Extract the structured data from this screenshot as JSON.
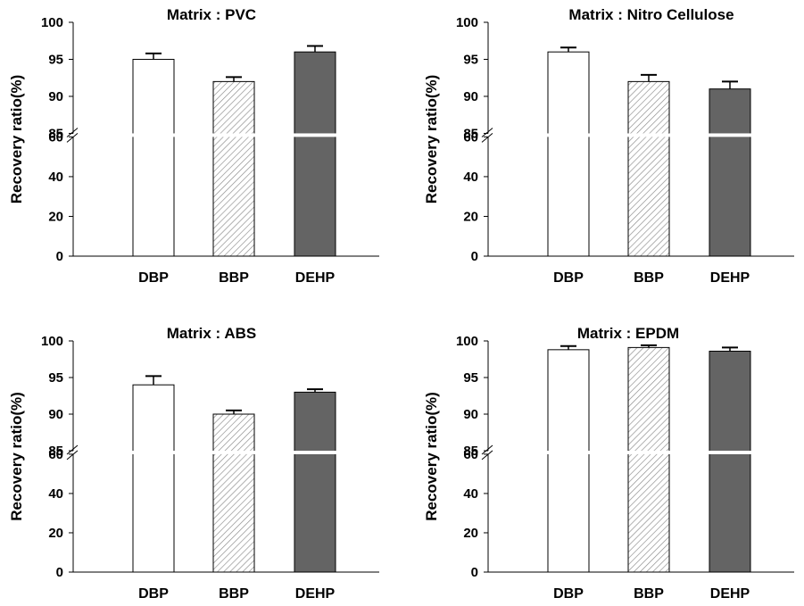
{
  "chart_data": [
    {
      "type": "bar",
      "title": "Matrix : PVC",
      "ylabel": "Recovery ratio(%)",
      "xlabel": "",
      "categories": [
        "DBP",
        "BBP",
        "DEHP"
      ],
      "values": [
        95.0,
        92.0,
        96.0
      ],
      "errors": [
        0.8,
        0.6,
        0.8
      ],
      "ylim": [
        0,
        100
      ],
      "axis_break": [
        60,
        85
      ],
      "yticks_lower": [
        "0",
        "20",
        "40",
        "60"
      ],
      "yticks_upper": [
        "85",
        "90",
        "95",
        "100"
      ],
      "bar_styles": [
        "white",
        "hatched",
        "dark"
      ],
      "grid": false
    },
    {
      "type": "bar",
      "title": "Matrix : Nitro Cellulose",
      "ylabel": "Recovery ratio(%)",
      "xlabel": "",
      "categories": [
        "DBP",
        "BBP",
        "DEHP"
      ],
      "values": [
        96.0,
        92.0,
        91.0
      ],
      "errors": [
        0.6,
        0.9,
        1.0
      ],
      "ylim": [
        0,
        100
      ],
      "axis_break": [
        60,
        85
      ],
      "yticks_lower": [
        "0",
        "20",
        "40",
        "60"
      ],
      "yticks_upper": [
        "85",
        "90",
        "95",
        "100"
      ],
      "bar_styles": [
        "white",
        "hatched",
        "dark"
      ],
      "grid": false
    },
    {
      "type": "bar",
      "title": "Matrix : ABS",
      "ylabel": "Recovery ratio(%)",
      "xlabel": "",
      "categories": [
        "DBP",
        "BBP",
        "DEHP"
      ],
      "values": [
        94.0,
        90.0,
        93.0
      ],
      "errors": [
        1.2,
        0.5,
        0.4
      ],
      "ylim": [
        0,
        100
      ],
      "axis_break": [
        60,
        85
      ],
      "yticks_lower": [
        "0",
        "20",
        "40",
        "60"
      ],
      "yticks_upper": [
        "85",
        "90",
        "95",
        "100"
      ],
      "bar_styles": [
        "white",
        "hatched",
        "dark"
      ],
      "grid": false
    },
    {
      "type": "bar",
      "title": "Matrix : EPDM",
      "ylabel": "Recovery ratio(%)",
      "xlabel": "",
      "categories": [
        "DBP",
        "BBP",
        "DEHP"
      ],
      "values": [
        98.8,
        99.1,
        98.6
      ],
      "errors": [
        0.5,
        0.3,
        0.5
      ],
      "ylim": [
        0,
        100
      ],
      "axis_break": [
        60,
        85
      ],
      "yticks_lower": [
        "0",
        "20",
        "40",
        "60"
      ],
      "yticks_upper": [
        "85",
        "90",
        "95",
        "100"
      ],
      "bar_styles": [
        "white",
        "hatched",
        "dark"
      ],
      "grid": false
    }
  ],
  "colors": {
    "white_bar": "#ffffff",
    "hatched_bar_bg": "#ffffff",
    "hatch_line": "#8a8a8a",
    "dark_bar": "#646464",
    "axis": "#000000"
  }
}
